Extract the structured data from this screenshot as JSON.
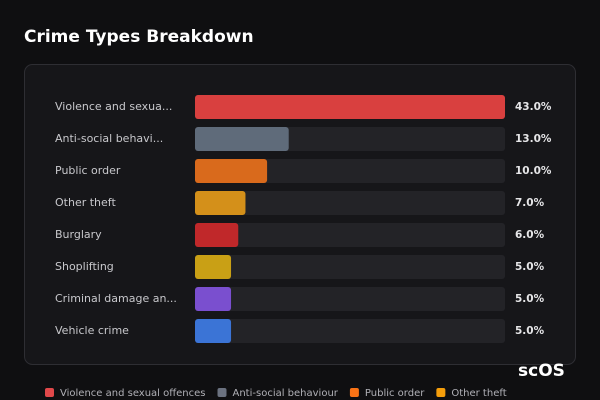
{
  "chart_data": {
    "type": "hbar",
    "title": "Crime Types Breakdown",
    "categories": [
      "Violence and sexua...",
      "Anti-social behavi...",
      "Public order",
      "Other theft",
      "Burglary",
      "Shoplifting",
      "Criminal damage an...",
      "Vehicle crime"
    ],
    "values": [
      43,
      13,
      10,
      7,
      6,
      5,
      5,
      5
    ],
    "value_labels": [
      "43.0%",
      "13.0%",
      "10.0%",
      "7.0%",
      "6.0%",
      "5.0%",
      "5.0%",
      "5.0%"
    ],
    "colors": [
      "#d9403f",
      "#5f6b7a",
      "#d96a1c",
      "#d4901a",
      "#c0282a",
      "#c9a015",
      "#7a4fcf",
      "#3b74d6"
    ],
    "xlim": [
      0,
      43
    ],
    "legend": [
      {
        "name": "Violence and sexual offences",
        "color": "#e0484a"
      },
      {
        "name": "Anti-social behaviour",
        "color": "#6b7280"
      },
      {
        "name": "Public order",
        "color": "#f97316"
      },
      {
        "name": "Other theft",
        "color": "#f59e0b"
      }
    ],
    "watermark": "scOS"
  }
}
